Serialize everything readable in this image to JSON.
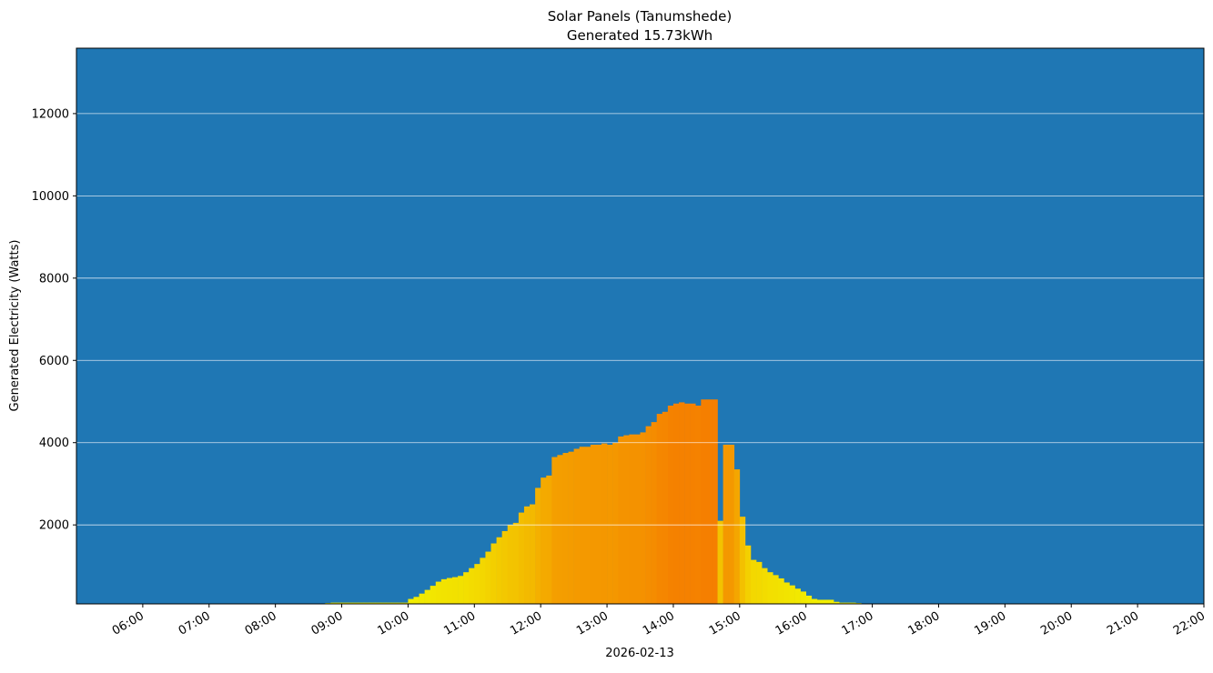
{
  "chart_data": {
    "type": "bar",
    "title": "Solar Panels (Tanumshede)",
    "subtitle": "Generated 15.73kWh",
    "x_label": "2026-02-13",
    "y_label": "Generated Electricity (Watts)",
    "x": [
      "08:45",
      "08:50",
      "08:55",
      "09:00",
      "09:05",
      "09:10",
      "09:15",
      "09:20",
      "09:25",
      "09:30",
      "09:35",
      "09:40",
      "09:45",
      "09:50",
      "09:55",
      "10:00",
      "10:05",
      "10:10",
      "10:15",
      "10:20",
      "10:25",
      "10:30",
      "10:35",
      "10:40",
      "10:45",
      "10:50",
      "10:55",
      "11:00",
      "11:05",
      "11:10",
      "11:15",
      "11:20",
      "11:25",
      "11:30",
      "11:35",
      "11:40",
      "11:45",
      "11:50",
      "11:55",
      "12:00",
      "12:05",
      "12:10",
      "12:15",
      "12:20",
      "12:25",
      "12:30",
      "12:35",
      "12:40",
      "12:45",
      "12:50",
      "12:55",
      "13:00",
      "13:05",
      "13:10",
      "13:15",
      "13:20",
      "13:25",
      "13:30",
      "13:35",
      "13:40",
      "13:45",
      "13:50",
      "13:55",
      "14:00",
      "14:05",
      "14:10",
      "14:15",
      "14:20",
      "14:25",
      "14:30",
      "14:35",
      "14:40",
      "14:45",
      "14:50",
      "14:55",
      "15:00",
      "15:05",
      "15:10",
      "15:15",
      "15:20",
      "15:25",
      "15:30",
      "15:35",
      "15:40",
      "15:45",
      "15:50",
      "15:55",
      "16:00",
      "16:05",
      "16:10",
      "16:15",
      "16:20",
      "16:25",
      "16:30",
      "16:35",
      "16:40",
      "16:45",
      "16:50",
      "16:55"
    ],
    "values": [
      100,
      110,
      110,
      110,
      110,
      110,
      110,
      110,
      110,
      110,
      110,
      110,
      110,
      110,
      110,
      200,
      250,
      330,
      420,
      520,
      620,
      680,
      710,
      730,
      760,
      850,
      950,
      1050,
      1200,
      1350,
      1550,
      1700,
      1850,
      2000,
      2050,
      2300,
      2450,
      2500,
      2900,
      3150,
      3200,
      3650,
      3700,
      3750,
      3780,
      3850,
      3900,
      3900,
      3950,
      3950,
      3980,
      3950,
      4000,
      4150,
      4180,
      4200,
      4200,
      4250,
      4400,
      4500,
      4700,
      4750,
      4900,
      4950,
      4980,
      4950,
      4950,
      4900,
      5050,
      5050,
      5050,
      2100,
      3950,
      3950,
      3350,
      2200,
      1500,
      1150,
      1100,
      950,
      850,
      780,
      700,
      600,
      530,
      450,
      380,
      280,
      200,
      180,
      180,
      180,
      130,
      110,
      110,
      110,
      100,
      90,
      80
    ],
    "bar_minutes": 5,
    "colormap": [
      "#f2f200",
      "#f57f00"
    ],
    "background": "#1f77b4",
    "xlim": [
      "05:00",
      "22:00"
    ],
    "xticks": [
      "06:00",
      "07:00",
      "08:00",
      "09:00",
      "10:00",
      "11:00",
      "12:00",
      "13:00",
      "14:00",
      "15:00",
      "16:00",
      "17:00",
      "18:00",
      "19:00",
      "20:00",
      "21:00",
      "22:00"
    ],
    "ylim": [
      80,
      13590
    ],
    "yticks": [
      2000,
      4000,
      6000,
      8000,
      10000,
      12000
    ],
    "grid": true
  }
}
